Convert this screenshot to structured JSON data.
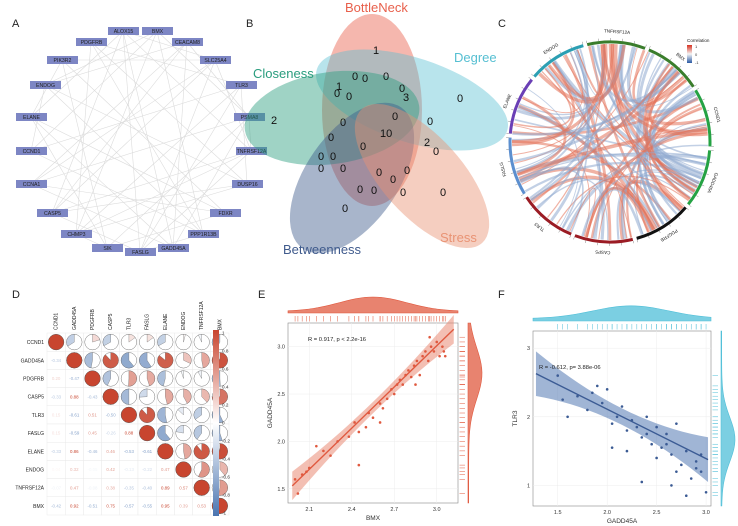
{
  "panels": {
    "A": "A",
    "B": "B",
    "C": "C",
    "D": "D",
    "E": "E",
    "F": "F"
  },
  "network": {
    "nodes": [
      "ALOX15",
      "BMX",
      "PDGFRB",
      "CEACAM8",
      "PIK3R2",
      "SLC25A4",
      "ENDOG",
      "TLR3",
      "PSMA8",
      "ELANE",
      "TNFRSF12A",
      "CCND1",
      "DUSP16",
      "CCNA1",
      "FDXR",
      "CASP5",
      "PPP1R13B",
      "CHMP3",
      "GADD45A",
      "SIK",
      "FASLG"
    ],
    "node_color": "#7d86c4",
    "edge_color": "#dcdcdc"
  },
  "venn": {
    "sets": [
      {
        "name": "BottleNeck",
        "color": "#e8604c"
      },
      {
        "name": "Degree",
        "color": "#56bfd2"
      },
      {
        "name": "Closeness",
        "color": "#2a9d7e"
      },
      {
        "name": "Betweenness",
        "color": "#3f5a8c"
      },
      {
        "name": "Stress",
        "color": "#e99374"
      }
    ],
    "counts": [
      "1",
      "0",
      "0",
      "0",
      "3",
      "0",
      "2",
      "0",
      "1",
      "0",
      "10",
      "2",
      "0",
      "0",
      "0",
      "0",
      "0",
      "0",
      "0",
      "0",
      "0",
      "0",
      "0",
      "0",
      "0",
      "0",
      "0",
      "0",
      "0",
      "0",
      "0"
    ]
  },
  "chord": {
    "legend_title": "Correlation",
    "legend_ticks": [
      "1",
      "0",
      "-1"
    ],
    "genes": [
      "TNFRSF12A",
      "BMX",
      "CCND1",
      "GADD45A",
      "PDGFRB",
      "CASP5",
      "TLR3",
      "FASLG",
      "ELANE",
      "ENDOG"
    ],
    "gene_colors": [
      "#3a7d2c",
      "#3a7d2c",
      "#25a244",
      "#25a244",
      "#111111",
      "#9b1c24",
      "#9b1c24",
      "#5c8fcf",
      "#6a3fb5",
      "#2c9fb3"
    ],
    "pos_color": "#e4725a",
    "neg_color": "#8fa9cf"
  },
  "corr": {
    "genes": [
      "CCND1",
      "GADD45A",
      "PDGFRB",
      "CASP5",
      "TLR3",
      "FASLG",
      "ELANE",
      "ENDOG",
      "TNFRSF12A",
      "BMX"
    ],
    "lower": [
      [
        "",
        "",
        "",
        "",
        "",
        "",
        "",
        "",
        "",
        ""
      ],
      [
        "-0.34",
        "",
        "",
        "",
        "",
        "",
        "",
        "",
        "",
        ""
      ],
      [
        "0.20",
        "-0.47",
        "",
        "",
        "",
        "",
        "",
        "",
        "",
        ""
      ],
      [
        "-0.33",
        "0.88",
        "-0.43",
        "",
        "",
        "",
        "",
        "",
        "",
        ""
      ],
      [
        "0.15",
        "-0.61",
        "0.51",
        "-0.50",
        "",
        "",
        "",
        "",
        "",
        ""
      ],
      [
        "0.15",
        "-0.59",
        "0.45",
        "-0.26",
        "0.88",
        "",
        "",
        "",
        "",
        ""
      ],
      [
        "-0.33",
        "0.86",
        "-0.46",
        "0.46",
        "-0.53",
        "-0.61",
        "",
        "",
        "",
        ""
      ],
      [
        "0.04",
        "0.32",
        "-0.05",
        "0.42",
        "-0.13",
        "-0.22",
        "0.47",
        "",
        "",
        ""
      ],
      [
        "-0.07",
        "0.47",
        "-0.08",
        "0.38",
        "-0.35",
        "-0.40",
        "0.89",
        "0.57",
        "",
        ""
      ],
      [
        "-0.42",
        "0.92",
        "-0.51",
        "0.75",
        "-0.57",
        "-0.55",
        "0.95",
        "0.39",
        "0.53",
        ""
      ]
    ],
    "colorbar": [
      "1",
      "0.8",
      "0.6",
      "0.4",
      "0.2",
      "0",
      "-0.2",
      "-0.4",
      "-0.6",
      "-0.8",
      "-1"
    ]
  },
  "scatterE": {
    "xlabel": "BMX",
    "ylabel": "GADD45A",
    "annotation": "R = 0.917, p < 2.2e-16",
    "xticks": [
      "2.1",
      "2.4",
      "2.7",
      "3.0"
    ],
    "yticks": [
      "1.5",
      "2.0",
      "2.5",
      "3.0"
    ],
    "color": "#e0593f",
    "fill": "#e98a74"
  },
  "scatterF": {
    "xlabel": "GADD45A",
    "ylabel": "TLR3",
    "annotation": "R = -0.612, p= 3.88e-06",
    "xticks": [
      "1.5",
      "2.0",
      "2.5",
      "3.0"
    ],
    "yticks": [
      "1",
      "2",
      "3"
    ],
    "color": "#3b5b94",
    "fill": "#5278b3",
    "margin_color": "#4fbfd8"
  },
  "chart_data": [
    {
      "type": "scatter",
      "title": "E",
      "xlabel": "BMX",
      "ylabel": "GADD45A",
      "xlim": [
        1.95,
        3.15
      ],
      "ylim": [
        1.35,
        3.25
      ],
      "x": [
        2.0,
        2.05,
        2.08,
        2.1,
        2.15,
        2.2,
        2.25,
        2.3,
        2.38,
        2.42,
        2.45,
        2.5,
        2.52,
        2.55,
        2.6,
        2.62,
        2.65,
        2.68,
        2.7,
        2.72,
        2.74,
        2.76,
        2.78,
        2.8,
        2.82,
        2.84,
        2.86,
        2.88,
        2.9,
        2.92,
        2.94,
        2.96,
        2.98,
        3.0,
        3.02,
        3.04,
        3.05,
        3.06,
        2.95,
        2.85,
        2.6,
        2.45,
        2.02
      ],
      "y": [
        1.6,
        1.65,
        1.68,
        1.72,
        1.95,
        1.9,
        1.85,
        2.0,
        2.05,
        2.2,
        2.1,
        2.15,
        2.3,
        2.25,
        2.4,
        2.35,
        2.45,
        2.55,
        2.5,
        2.6,
        2.65,
        2.6,
        2.7,
        2.75,
        2.68,
        2.8,
        2.85,
        2.7,
        2.9,
        2.95,
        2.85,
        3.0,
        2.95,
        3.05,
        2.9,
        3.0,
        2.95,
        2.9,
        3.1,
        2.6,
        2.2,
        1.75,
        1.45
      ],
      "fit": {
        "slope": 1.45,
        "intercept": -1.34
      },
      "annotation": "R = 0.917, p < 2.2e-16"
    },
    {
      "type": "scatter",
      "title": "F",
      "xlabel": "GADD45A",
      "ylabel": "TLR3",
      "xlim": [
        1.25,
        3.05
      ],
      "ylim": [
        0.7,
        3.25
      ],
      "x": [
        1.5,
        1.55,
        1.6,
        1.7,
        1.8,
        1.85,
        1.95,
        2.0,
        2.05,
        2.1,
        2.15,
        2.2,
        2.25,
        2.3,
        2.35,
        2.4,
        2.45,
        2.5,
        2.55,
        2.6,
        2.65,
        2.7,
        2.75,
        2.8,
        2.85,
        2.9,
        2.95,
        3.0,
        2.2,
        2.35,
        2.5,
        2.65,
        2.8,
        2.9,
        2.95,
        2.6,
        2.4,
        2.05,
        1.9,
        2.7
      ],
      "y": [
        2.6,
        2.25,
        2.0,
        2.3,
        2.1,
        2.35,
        2.2,
        2.4,
        1.9,
        2.0,
        2.15,
        1.8,
        1.95,
        1.85,
        1.7,
        2.0,
        1.6,
        1.85,
        1.55,
        1.75,
        1.45,
        1.9,
        1.3,
        1.5,
        1.1,
        1.35,
        1.2,
        0.9,
        1.5,
        1.05,
        1.4,
        1.0,
        0.85,
        1.25,
        1.45,
        1.6,
        1.75,
        1.55,
        2.45,
        1.2
      ],
      "fit": {
        "slope": -0.72,
        "intercept": 3.55
      },
      "annotation": "R = -0.612, p= 3.88e-06"
    }
  ]
}
